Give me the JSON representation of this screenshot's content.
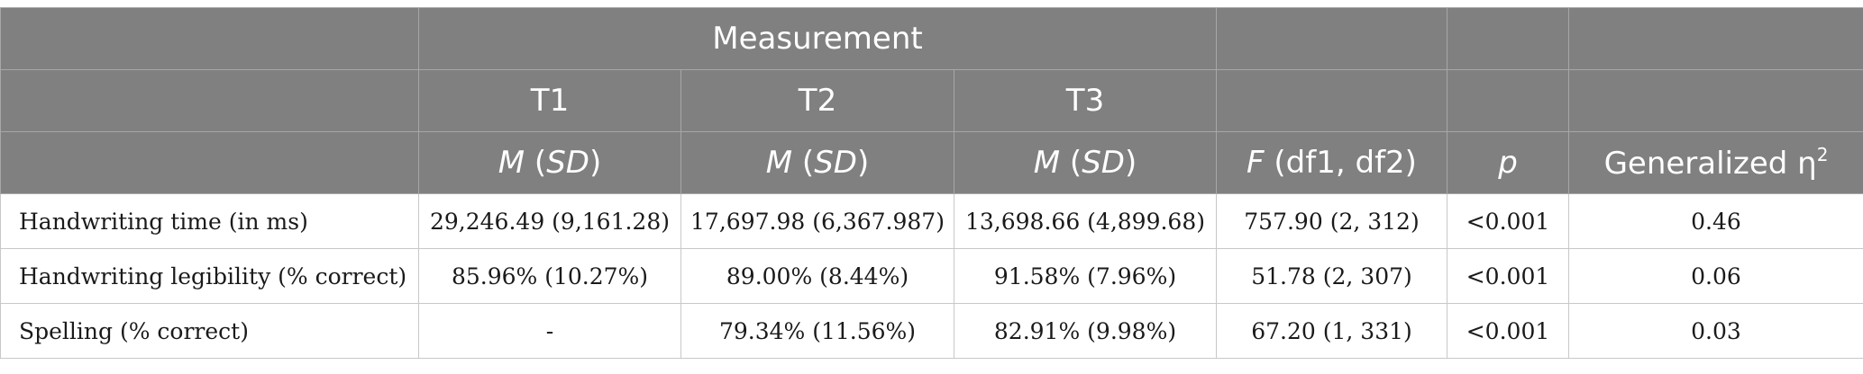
{
  "header": {
    "measurement": "Measurement",
    "t1": "T1",
    "t2": "T2",
    "t3": "T3",
    "m_sd": {
      "m": "M",
      "open": " (",
      "sd": "SD",
      "close": ")"
    },
    "f_col": {
      "f": "F",
      "rest": " (df1, df2)"
    },
    "p_col": "p",
    "eta_col": {
      "text": "Generalized η",
      "sup": "2"
    }
  },
  "rows": [
    {
      "label": "Handwriting time (in ms)",
      "t1": "29,246.49 (9,161.28)",
      "t2": "17,697.98 (6,367.987)",
      "t3": "13,698.66 (4,899.68)",
      "f": "757.90 (2, 312)",
      "p": "<0.001",
      "eta": "0.46"
    },
    {
      "label": "Handwriting legibility (% correct)",
      "t1": "85.96% (10.27%)",
      "t2": "89.00% (8.44%)",
      "t3": "91.58% (7.96%)",
      "f": "51.78 (2, 307)",
      "p": "<0.001",
      "eta": "0.06"
    },
    {
      "label": "Spelling (% correct)",
      "t1": "-",
      "t2": "79.34% (11.56%)",
      "t3": "82.91% (9.98%)",
      "f": "67.20 (1, 331)",
      "p": "<0.001",
      "eta": "0.03"
    }
  ]
}
